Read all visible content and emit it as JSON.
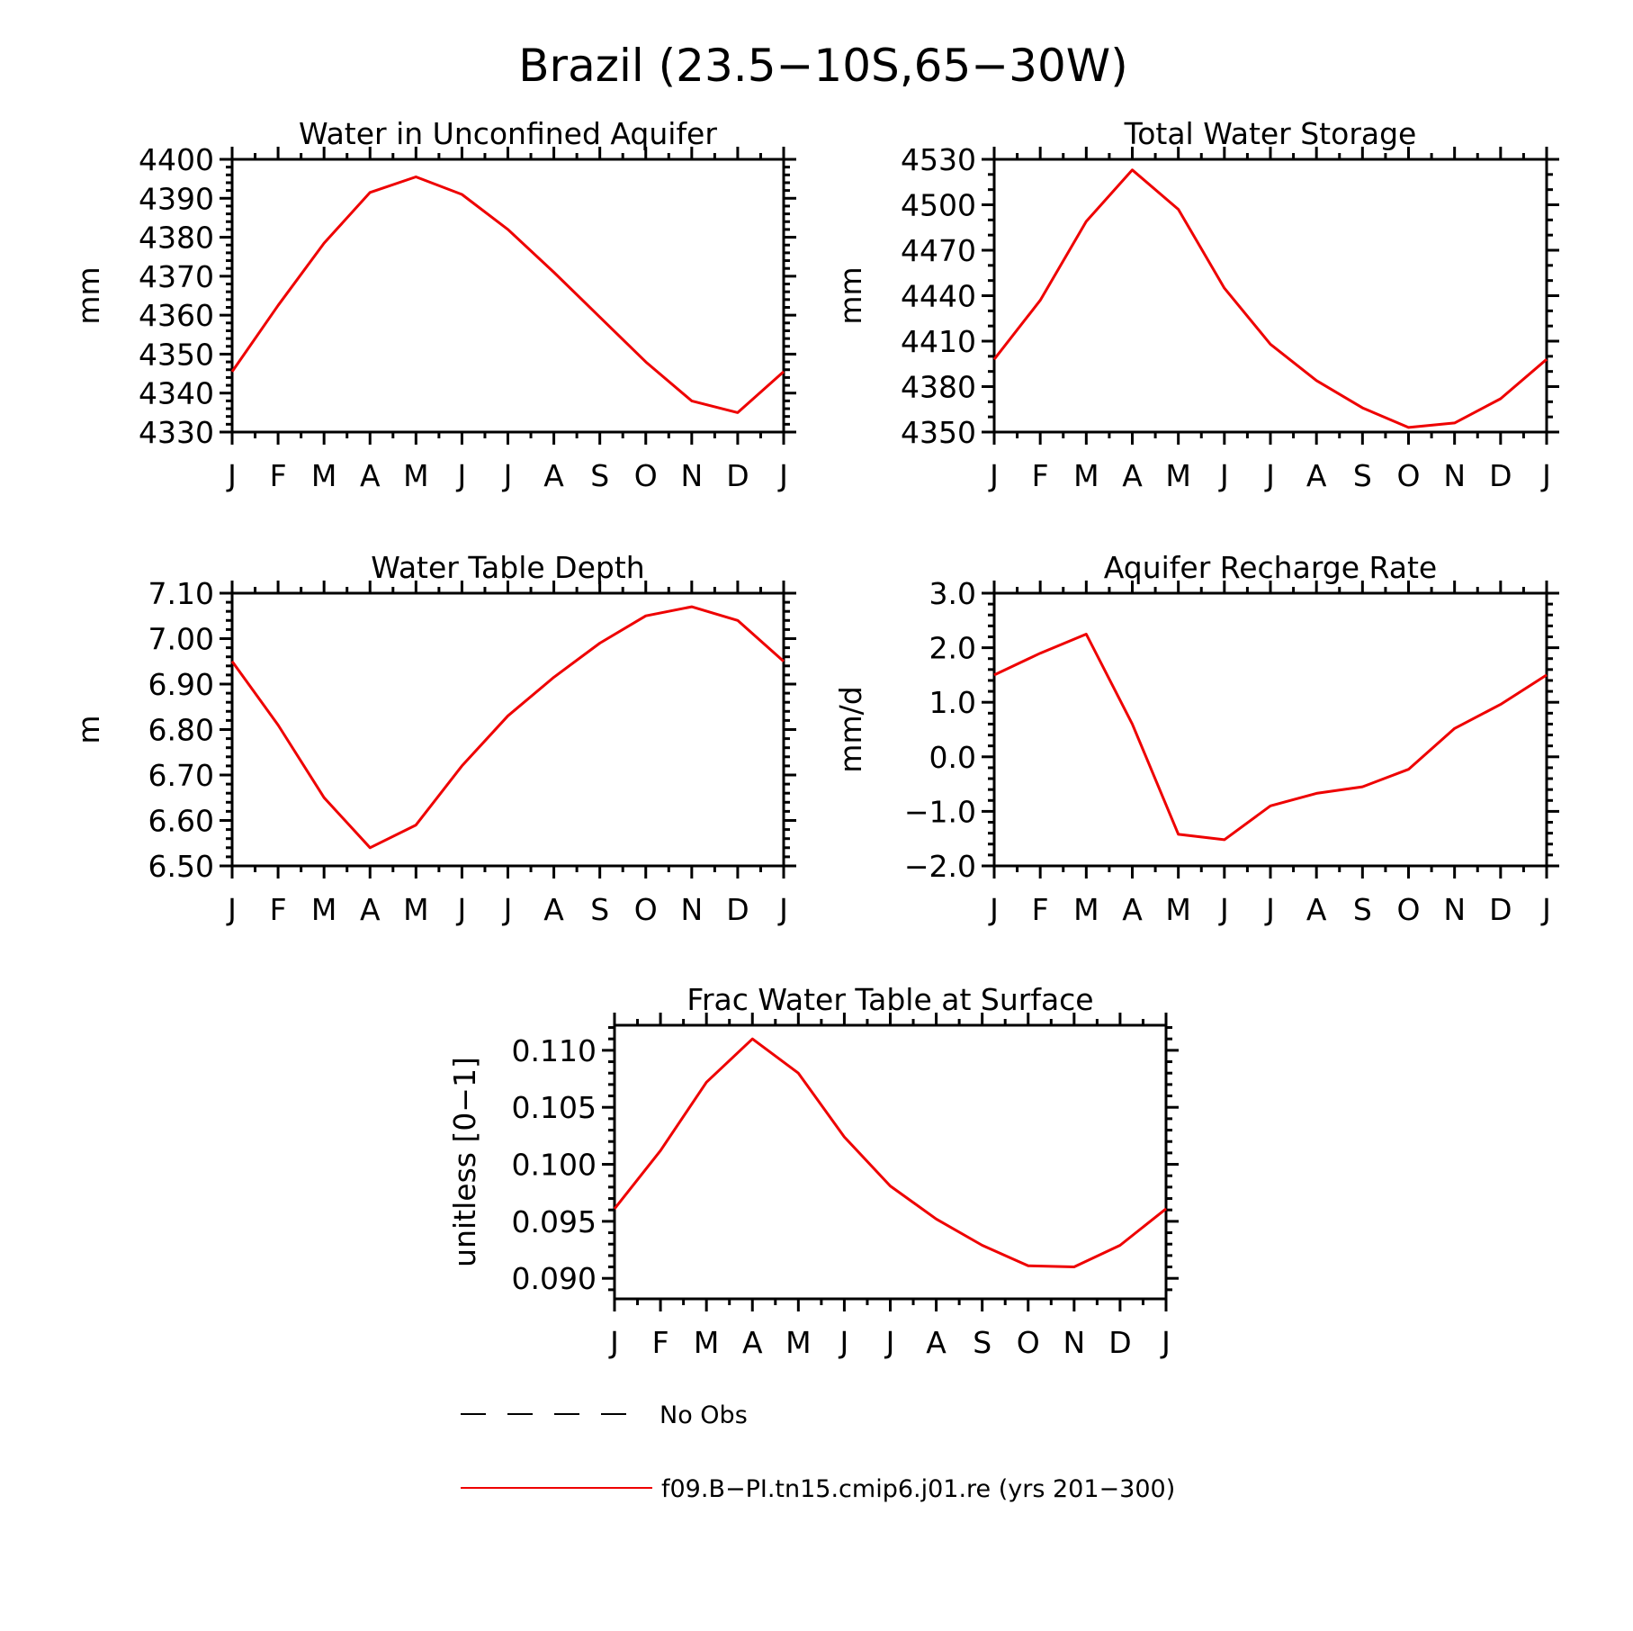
{
  "figure": {
    "title": "Brazil (23.5−10S,65−30W)",
    "line_color": "#ee0000",
    "legend": [
      {
        "label": "No Obs",
        "style": "dashed",
        "color": "#000000"
      },
      {
        "label": "f09.B−PI.tn15.cmip6.j01.re (yrs 201−300)",
        "style": "solid",
        "color": "#ee0000"
      }
    ]
  },
  "chart_data": [
    {
      "type": "line",
      "title": "Water in Unconfined Aquifer",
      "ylabel": "mm",
      "categories": [
        "J",
        "F",
        "M",
        "A",
        "M",
        "J",
        "J",
        "A",
        "S",
        "O",
        "N",
        "D",
        "J"
      ],
      "values": [
        4345.5,
        4362.5,
        4378.5,
        4391.5,
        4395.5,
        4391,
        4382,
        4371,
        4359.5,
        4348,
        4338,
        4335,
        4345.5
      ],
      "ylim": [
        4330,
        4400
      ],
      "yticks": [
        4330,
        4340,
        4350,
        4360,
        4370,
        4380,
        4390,
        4400
      ],
      "ytick_labels": [
        "4330",
        "4340",
        "4350",
        "4360",
        "4370",
        "4380",
        "4390",
        "4400"
      ],
      "yminor": 2,
      "grid": false
    },
    {
      "type": "line",
      "title": "Total Water Storage",
      "ylabel": "mm",
      "categories": [
        "J",
        "F",
        "M",
        "A",
        "M",
        "J",
        "J",
        "A",
        "S",
        "O",
        "N",
        "D",
        "J"
      ],
      "values": [
        4398,
        4437,
        4489,
        4523,
        4497,
        4445,
        4408,
        4384,
        4366,
        4353,
        4356,
        4372,
        4398
      ],
      "ylim": [
        4350,
        4530
      ],
      "yticks": [
        4350,
        4380,
        4410,
        4440,
        4470,
        4500,
        4530
      ],
      "ytick_labels": [
        "4350",
        "4380",
        "4410",
        "4440",
        "4470",
        "4500",
        "4530"
      ],
      "yminor": 10,
      "grid": false
    },
    {
      "type": "line",
      "title": "Water Table Depth",
      "ylabel": "m",
      "categories": [
        "J",
        "F",
        "M",
        "A",
        "M",
        "J",
        "J",
        "A",
        "S",
        "O",
        "N",
        "D",
        "J"
      ],
      "values": [
        6.95,
        6.81,
        6.65,
        6.54,
        6.59,
        6.72,
        6.83,
        6.915,
        6.99,
        7.05,
        7.07,
        7.04,
        6.95
      ],
      "ylim": [
        6.5,
        7.1
      ],
      "yticks": [
        6.5,
        6.6,
        6.7,
        6.8,
        6.9,
        7.0,
        7.1
      ],
      "ytick_labels": [
        "6.50",
        "6.60",
        "6.70",
        "6.80",
        "6.90",
        "7.00",
        "7.10"
      ],
      "yminor": 0.02,
      "grid": false
    },
    {
      "type": "line",
      "title": "Aquifer Recharge Rate",
      "ylabel": "mm/d",
      "categories": [
        "J",
        "F",
        "M",
        "A",
        "M",
        "J",
        "J",
        "A",
        "S",
        "O",
        "N",
        "D",
        "J"
      ],
      "values": [
        1.5,
        1.9,
        2.25,
        0.6,
        -1.42,
        -1.52,
        -0.9,
        -0.67,
        -0.55,
        -0.23,
        0.52,
        0.96,
        1.5
      ],
      "ylim": [
        -2.0,
        3.0
      ],
      "yticks": [
        -2,
        -1,
        0,
        1,
        2,
        3
      ],
      "ytick_labels": [
        "−2.0",
        "−1.0",
        "0.0",
        "1.0",
        "2.0",
        "3.0"
      ],
      "yminor": 0.2,
      "grid": false
    },
    {
      "type": "line",
      "title": "Frac Water Table at Surface",
      "ylabel": "unitless [0−1]",
      "categories": [
        "J",
        "F",
        "M",
        "A",
        "M",
        "J",
        "J",
        "A",
        "S",
        "O",
        "N",
        "D",
        "J"
      ],
      "values": [
        0.0961,
        0.1012,
        0.1072,
        0.111,
        0.108,
        0.1024,
        0.0981,
        0.0952,
        0.0929,
        0.0911,
        0.091,
        0.0929,
        0.0961
      ],
      "ylim": [
        0.0882,
        0.1122
      ],
      "yticks": [
        0.09,
        0.095,
        0.1,
        0.105,
        0.11
      ],
      "ytick_labels": [
        "0.090",
        "0.095",
        "0.100",
        "0.105",
        "0.110"
      ],
      "yminor": 0.001,
      "grid": false
    }
  ]
}
